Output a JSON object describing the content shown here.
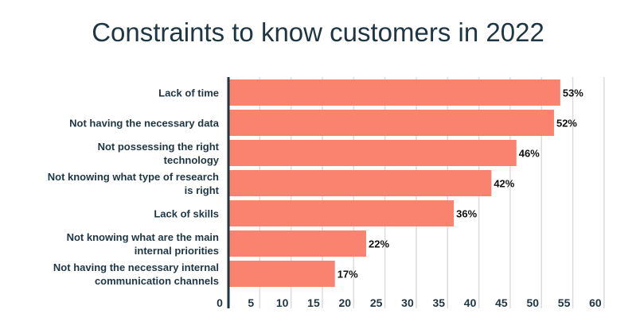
{
  "chart_data": {
    "type": "bar",
    "orientation": "horizontal",
    "title": "Constraints to know customers in 2022",
    "categories": [
      [
        "Lack of time"
      ],
      [
        "Not having the necessary data"
      ],
      [
        "Not possessing the right",
        "technology"
      ],
      [
        "Not knowing what type of research",
        "is right"
      ],
      [
        "Lack of skills"
      ],
      [
        "Not knowing what are the main",
        "internal priorities"
      ],
      [
        "Not having the necessary internal",
        "communication channels"
      ]
    ],
    "values": [
      53,
      52,
      46,
      42,
      36,
      22,
      17
    ],
    "data_labels": [
      "53%",
      "52%",
      "46%",
      "42%",
      "36%",
      "22%",
      "17%"
    ],
    "xlim": [
      0,
      60
    ],
    "xticks": [
      "0",
      "5",
      "10",
      "15",
      "20",
      "25",
      "30",
      "35",
      "40",
      "45",
      "50",
      "55",
      "60"
    ],
    "grid": true,
    "colors": {
      "bar": "#F9836F",
      "text": "#1E3644",
      "grid": "#D9DCE0",
      "axis": "#1E3644"
    }
  }
}
